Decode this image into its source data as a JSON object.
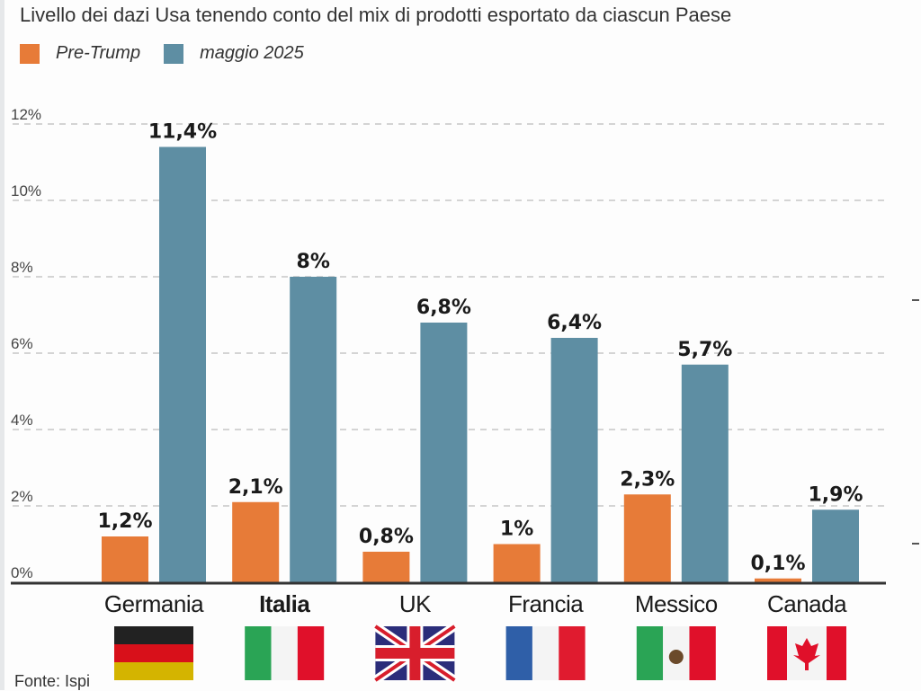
{
  "chart_data": {
    "type": "bar",
    "title": "Livello dei dazi Usa tenendo conto del mix di prodotti esportato da ciascun Paese",
    "categories": [
      "Germania",
      "Italia",
      "UK",
      "Francia",
      "Messico",
      "Canada"
    ],
    "series": [
      {
        "name": "Pre-Trump",
        "color": "#e77b38",
        "values": [
          1.2,
          2.1,
          0.8,
          1,
          2.3,
          0.1
        ],
        "labels": [
          "1,2%",
          "2,1%",
          "0,8%",
          "1%",
          "2,3%",
          "0,1%"
        ]
      },
      {
        "name": "maggio 2025",
        "color": "#5e8ea3",
        "values": [
          11.4,
          8,
          6.8,
          6.4,
          5.7,
          1.9
        ],
        "labels": [
          "11,4%",
          "8%",
          "6,8%",
          "6,4%",
          "5,7%",
          "1,9%"
        ]
      }
    ],
    "yticks": [
      "0%",
      "2%",
      "4%",
      "6%",
      "8%",
      "10%",
      "12%"
    ],
    "ylim": [
      0,
      12
    ],
    "grid": true,
    "legend": "top-left",
    "bold_category": "Italia",
    "flags": [
      "germany-flag",
      "italy-flag",
      "uk-flag",
      "france-flag",
      "mexico-flag",
      "canada-flag"
    ]
  },
  "source": "Fonte: Ispi"
}
